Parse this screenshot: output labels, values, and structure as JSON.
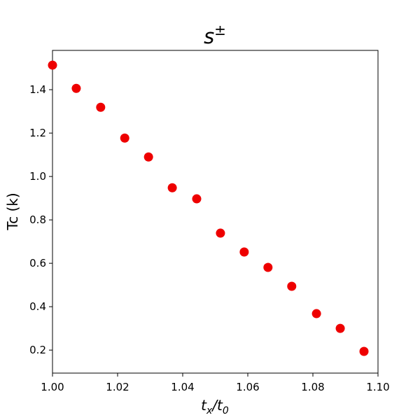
{
  "chart_data": {
    "type": "scatter",
    "title": {
      "base": "s",
      "superscript": "±"
    },
    "xlabel": [
      {
        "text": "t",
        "sub": false
      },
      {
        "text": "x",
        "sub": true
      },
      {
        "text": "/t",
        "sub": false
      },
      {
        "text": "0",
        "sub": true
      }
    ],
    "ylabel": "Tc (k)",
    "x": [
      1.0,
      1.0073,
      1.0148,
      1.0222,
      1.0295,
      1.0368,
      1.0443,
      1.0516,
      1.0589,
      1.0662,
      1.0735,
      1.0811,
      1.0884,
      1.0957
    ],
    "values": [
      1.513,
      1.406,
      1.319,
      1.177,
      1.09,
      0.948,
      0.897,
      0.739,
      0.652,
      0.581,
      0.494,
      0.368,
      0.3,
      0.194
    ],
    "color": "#ee0000",
    "xlim": [
      1.0,
      1.1
    ],
    "ylim": [
      0.094,
      1.581
    ],
    "xticks": [
      {
        "value": 1.0,
        "label": "1.00"
      },
      {
        "value": 1.02,
        "label": "1.02"
      },
      {
        "value": 1.04,
        "label": "1.04"
      },
      {
        "value": 1.06,
        "label": "1.06"
      },
      {
        "value": 1.08,
        "label": "1.08"
      },
      {
        "value": 1.1,
        "label": "1.10"
      }
    ],
    "yticks": [
      0.2,
      0.4,
      0.6,
      0.8,
      {
        "value": 1.0,
        "label": "1.0"
      },
      1.2,
      1.4
    ],
    "grid": false
  }
}
